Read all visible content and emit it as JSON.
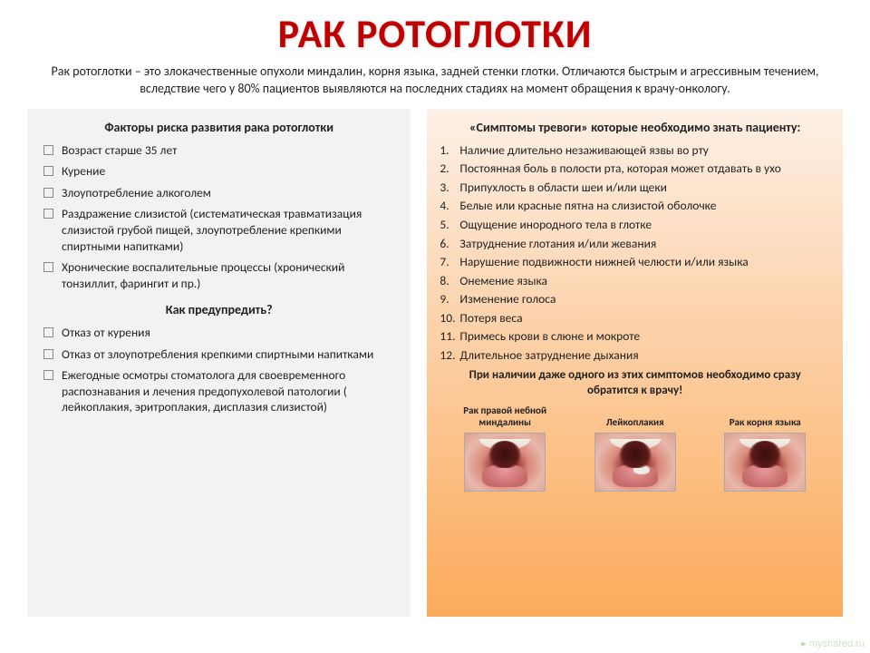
{
  "title": "РАК РОТОГЛОТКИ",
  "intro": "Рак ротоглотки – это злокачественные опухоли миндалин, корня языка, задней стенки глотки. Отличаются быстрым и агрессивным течением, вследствие чего у 80% пациентов выявляются на последних стадиях на момент обращения к врачу-онкологу.",
  "left": {
    "heading": "Факторы риска развития рака ротоглотки",
    "risk_factors": [
      "Возраст старше 35 лет",
      "Курение",
      "Злоупотребление алкоголем",
      "Раздражение слизистой (систематическая травматизация слизистой грубой пищей, злоупотребление крепкими спиртными напитками)",
      "Хронические воспалительные процессы (хронический тонзиллит, фарингит и пр.)"
    ],
    "prevent_heading": "Как предупредить?",
    "prevention": [
      "Отказ от курения",
      "Отказ от злоупотребления крепкими спиртными напитками",
      "Ежегодные осмотры стоматолога для своевременного распознавания и лечения предопухолевой патологии ( лейкоплакия, эритроплакия, дисплазия слизистой)"
    ]
  },
  "right": {
    "heading": "«Симптомы тревоги» которые необходимо знать пациенту:",
    "symptoms": [
      "Наличие длительно незаживающей язвы во рту",
      "Постоянная боль в полости рта, которая может отдавать в ухо",
      "Припухлость в области шеи и/или щеки",
      "Белые или красные пятна на слизистой оболочке",
      "Ощущение инородного тела в глотке",
      "Затруднение глотания и/или жевания",
      "Нарушение подвижности нижней челюсти и/или языка",
      "Онемение языка",
      "Изменение голоса",
      "Потеря веса",
      "Примесь крови в слюне и мокроте",
      "Длительное затруднение дыхания"
    ],
    "warning": "При наличии даже одного из этих симптомов необходимо сразу обратится к врачу!",
    "photos": [
      {
        "caption": "Рак правой небной миндалины"
      },
      {
        "caption": "Лейкоплакия"
      },
      {
        "caption": "Рак корня языка"
      }
    ]
  },
  "watermark": "myshared.ru",
  "colors": {
    "title_color": "#c00000",
    "left_bg": "#f2f2f2",
    "right_bg_top": "#fdf0e6",
    "right_bg_bottom": "#fcaa5a",
    "body_bg": "#ffffff",
    "text": "#222222",
    "bullet_border": "#888888"
  },
  "fonts": {
    "title_size_pt": 34,
    "body_size_pt": 10,
    "heading_size_pt": 11
  }
}
